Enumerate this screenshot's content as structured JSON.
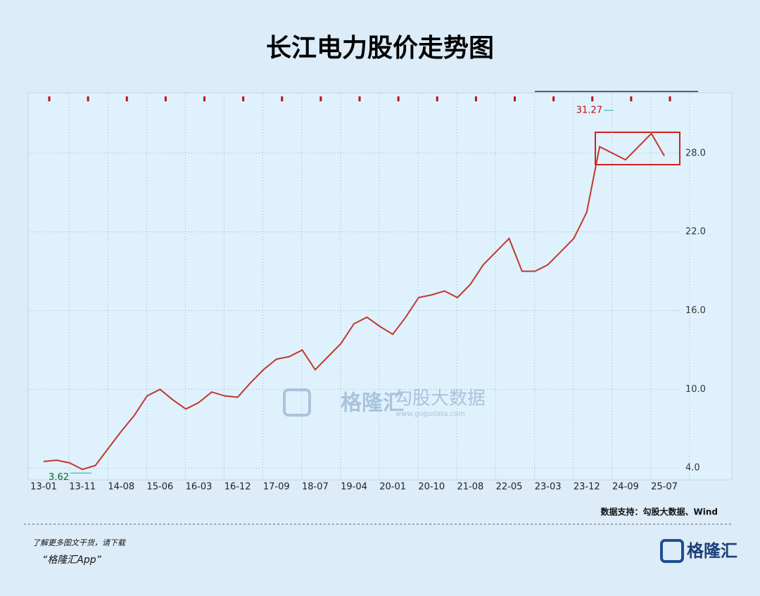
{
  "chart_data": {
    "type": "line",
    "title": "长江电力股价走势图",
    "categories": [
      "13-01",
      null,
      null,
      "13-11",
      null,
      null,
      "14-08",
      null,
      null,
      "15-06",
      null,
      null,
      "16-03",
      null,
      null,
      "16-12",
      null,
      null,
      "17-09",
      null,
      null,
      "18-07",
      null,
      null,
      "19-04",
      null,
      null,
      "20-01",
      null,
      null,
      "20-10",
      null,
      null,
      "21-08",
      null,
      null,
      "22-05",
      null,
      null,
      "23-03",
      null,
      null,
      "23-12",
      null,
      null,
      "24-09",
      null,
      null,
      "25-07"
    ],
    "series": [
      {
        "name": "长江电力",
        "color": "#c0392b",
        "values": [
          4.5,
          4.6,
          4.4,
          3.9,
          4.2,
          5.5,
          6.8,
          8.0,
          9.5,
          10.0,
          9.2,
          8.5,
          9.0,
          9.8,
          9.5,
          9.4,
          10.5,
          11.5,
          12.3,
          12.5,
          13.0,
          11.5,
          12.5,
          13.5,
          15.0,
          15.5,
          14.8,
          14.2,
          15.5,
          17.0,
          17.2,
          17.5,
          17.0,
          18.0,
          19.5,
          20.5,
          21.5,
          19.0,
          19.0,
          19.5,
          20.5,
          21.5,
          23.5,
          28.5,
          28.0,
          27.5,
          28.5,
          29.5,
          27.8
        ]
      }
    ],
    "ylim": [
      3.1,
      32.6
    ],
    "yticks": [
      {
        "value": 4,
        "label": "4.0"
      },
      {
        "value": 10,
        "label": "10.0"
      },
      {
        "value": 16,
        "label": "16.0"
      },
      {
        "value": 22,
        "label": "22.0"
      },
      {
        "value": 28,
        "label": "28.0"
      }
    ],
    "grid": true,
    "high": 31.27,
    "low": 3.62,
    "source": "数据支持：勾股大数据、Wind"
  },
  "watermark": {
    "brand": "格隆汇",
    "data": "勾股大数据",
    "url": "www.gogudata.com"
  },
  "footer": {
    "line1": "了解更多图文干货，请下载",
    "line2": "“格隆汇App”",
    "logo": "格隆汇"
  }
}
